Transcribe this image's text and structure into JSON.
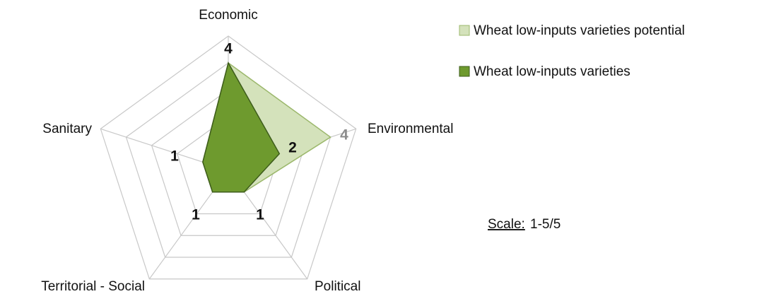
{
  "chart_data": {
    "type": "radar",
    "categories": [
      "Economic",
      "Environmental",
      "Political",
      "Territorial - Social",
      "Sanitary"
    ],
    "series": [
      {
        "name": "Wheat low-inputs varieties potential",
        "color": "#d4e2bb",
        "edge": "#9cb86c",
        "values": [
          4,
          4,
          1,
          1,
          1
        ],
        "value_labels": [
          null,
          "4",
          null,
          null,
          null
        ]
      },
      {
        "name": "Wheat low-inputs varieties",
        "color": "#6e9a2e",
        "edge": "#3d5c1b",
        "values": [
          4,
          2,
          1,
          1,
          1
        ],
        "value_labels": [
          "4",
          "2",
          "1",
          "1",
          "1"
        ]
      }
    ],
    "rlim": [
      0,
      5
    ],
    "rticks": [
      1,
      2,
      3,
      4,
      5
    ],
    "grid": true,
    "legend": "top-right",
    "annotation": {
      "label": "Scale:",
      "value": "1-5/5"
    }
  }
}
